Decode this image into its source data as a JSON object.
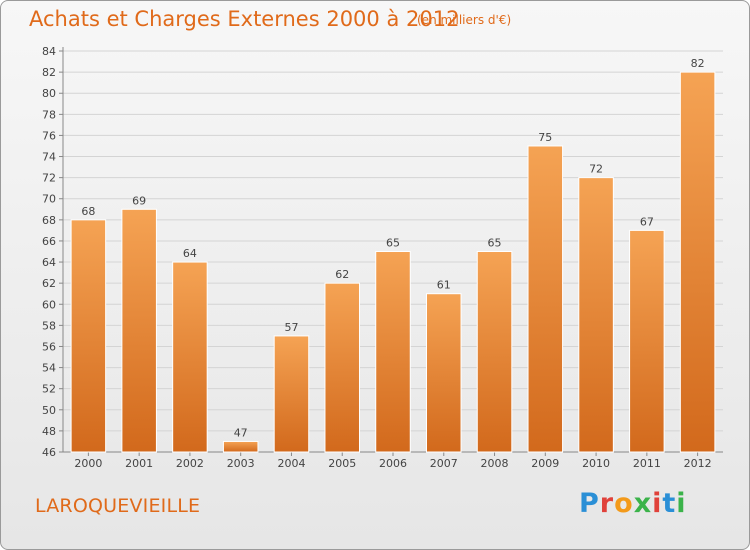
{
  "header": {
    "title": "Achats et Charges Externes 2000 à 2012",
    "unit_note": "(en milliers d'€)"
  },
  "footer": {
    "commune": "LAROQUEVIEILLE",
    "logo_text": "Proxiti"
  },
  "colors": {
    "accent": "#e06a1a",
    "bar_top": "#f5a354",
    "bar_bottom": "#d2691c",
    "logo_letters": [
      "#2a8fd6",
      "#e0413a",
      "#f39a1a",
      "#3bb34a",
      "#e0413a",
      "#2a8fd6",
      "#3bb34a"
    ]
  },
  "chart_data": {
    "type": "bar",
    "title": "Achats et Charges Externes 2000 à 2012",
    "subtitle": "(en milliers d'€)",
    "xlabel": "",
    "ylabel": "",
    "categories": [
      "2000",
      "2001",
      "2002",
      "2003",
      "2004",
      "2005",
      "2006",
      "2007",
      "2008",
      "2009",
      "2010",
      "2011",
      "2012"
    ],
    "values": [
      68,
      69,
      64,
      47,
      57,
      62,
      65,
      61,
      65,
      75,
      72,
      67,
      82
    ],
    "ylim": [
      46,
      84
    ],
    "yticks": [
      46,
      48,
      50,
      52,
      54,
      56,
      58,
      60,
      62,
      64,
      66,
      68,
      70,
      72,
      74,
      76,
      78,
      80,
      82,
      84
    ],
    "grid": true,
    "legend": "none"
  }
}
